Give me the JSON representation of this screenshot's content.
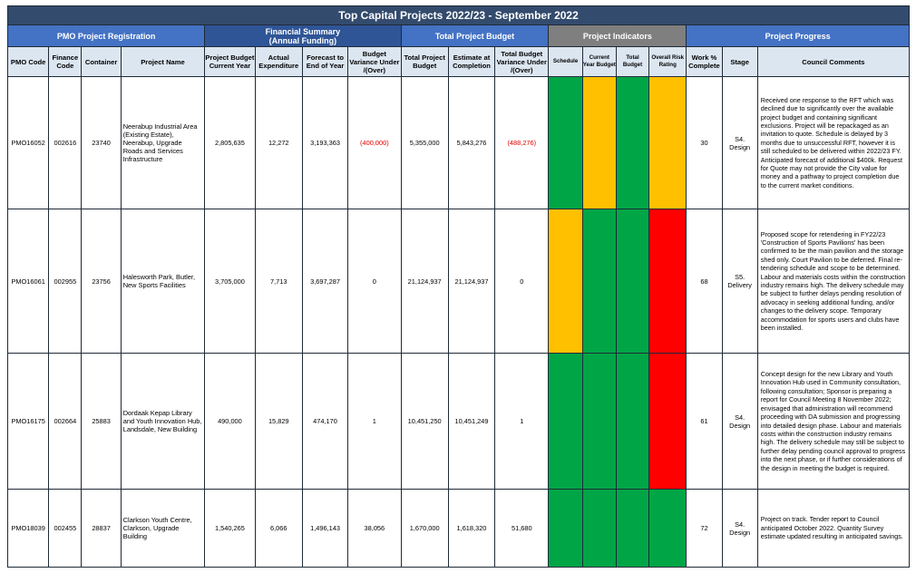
{
  "title": "Top Capital Projects 2022/23 - September 2022",
  "groups": {
    "registration": "PMO Project Registration",
    "financial": "Financial Summary\n(Annual Funding)",
    "budget": "Total Project Budget",
    "indicators": "Project Indicators",
    "progress": "Project Progress"
  },
  "headers": {
    "pmo_code": "PMO Code",
    "finance_code": "Finance Code",
    "container": "Container",
    "project_name": "Project Name",
    "budget_current": "Project Budget Current Year",
    "actual": "Actual Expenditure",
    "forecast": "Forecast to End of Year",
    "variance": "Budget Variance Under /(Over)",
    "total_budget": "Total Project Budget",
    "estimate": "Estimate at Completion",
    "total_variance": "Total Budget Variance Under /(Over)",
    "schedule": "Schedule",
    "current_year_budget": "Current Year Budget",
    "total_budget_ind": "Total Budget",
    "overall_risk": "Overall Risk Rating",
    "work_complete": "Work % Complete",
    "stage": "Stage",
    "comments": "Council Comments"
  },
  "colors": {
    "green": "#00a646",
    "amber": "#ffc000",
    "red": "#ff0000"
  },
  "rows": [
    {
      "pmo_code": "PMO16052",
      "finance_code": "002616",
      "container": "23740",
      "project_name": "Neerabup Industrial Area (Existing Estate), Neerabup, Upgrade Roads and Services Infrastructure",
      "budget_current": "2,805,635",
      "actual": "12,272",
      "forecast": "3,193,363",
      "variance": "(400,000)",
      "variance_negative": true,
      "total_budget": "5,355,000",
      "estimate": "5,843,276",
      "total_variance": "(488,276)",
      "total_variance_negative": true,
      "indicators": [
        "green",
        "amber",
        "green",
        "amber"
      ],
      "work_complete": "30",
      "stage": "S4.\nDesign",
      "comments": "Received one response to the RFT which was declined due to significantly over the available project budget and containing significant exclusions. Project will be repackaged as an invitation to quote. Schedule is delayed by 3 months due to unsuccessful RFT, however it is still scheduled to be delivered within 2022/23 FY. Anticipated forecast of additional $400k. Request for Quote may not provide the City value for money and a pathway to project completion due to the current market conditions."
    },
    {
      "pmo_code": "PMO16061",
      "finance_code": "002955",
      "container": "23756",
      "project_name": "Halesworth Park, Butler, New Sports Facilities",
      "budget_current": "3,705,000",
      "actual": "7,713",
      "forecast": "3,697,287",
      "variance": "0",
      "variance_negative": false,
      "total_budget": "21,124,937",
      "estimate": "21,124,937",
      "total_variance": "0",
      "total_variance_negative": false,
      "indicators": [
        "amber",
        "green",
        "green",
        "red"
      ],
      "work_complete": "68",
      "stage": "S5.\nDelivery",
      "comments": "Proposed scope for retendering in FY22/23 'Construction of Sports Pavilions' has been confirmed to be the main pavilion and the storage shed only. Court Pavilion to be deferred. Final re-tendering schedule and scope to be determined. Labour and materials costs within the construction industry remains high. The delivery schedule may be subject to further delays pending resolution of advocacy in seeking additional funding, and/or changes to the delivery scope. Temporary accommodation for sports users and clubs have been installed."
    },
    {
      "pmo_code": "PMO16175",
      "finance_code": "002664",
      "container": "25883",
      "project_name": "Dordaak Kepap Library and Youth Innovation Hub, Landsdale, New Building",
      "budget_current": "490,000",
      "actual": "15,829",
      "forecast": "474,170",
      "variance": "1",
      "variance_negative": false,
      "total_budget": "10,451,250",
      "estimate": "10,451,249",
      "total_variance": "1",
      "total_variance_negative": false,
      "indicators": [
        "green",
        "green",
        "green",
        "red"
      ],
      "work_complete": "61",
      "stage": "S4.\nDesign",
      "comments": "Concept design for the new Library and Youth Innovation Hub used in Community consultation, following consultation; Sponsor is preparing a report for Council Meeting 8 November 2022; envisaged that administration will recommend proceeding with DA submission and progressing into detailed design phase.  Labour and materials costs within the construction industry remains high. The delivery schedule may still be subject to further delay pending council approval to progress into the next phase, or if further considerations of the design in meeting the budget is required."
    },
    {
      "pmo_code": "PMO18039",
      "finance_code": "002455",
      "container": "28837",
      "project_name": "Clarkson Youth Centre, Clarkson, Upgrade Building",
      "budget_current": "1,540,265",
      "actual": "6,066",
      "forecast": "1,496,143",
      "variance": "38,056",
      "variance_negative": false,
      "total_budget": "1,670,000",
      "estimate": "1,618,320",
      "total_variance": "51,680",
      "total_variance_negative": false,
      "indicators": [
        "green",
        "green",
        "green",
        "green"
      ],
      "work_complete": "72",
      "stage": "S4.\nDesign",
      "comments": " Project on track. Tender report to Council anticipated October 2022.  Quantity Survey estimate updated resulting in anticipated savings."
    }
  ]
}
